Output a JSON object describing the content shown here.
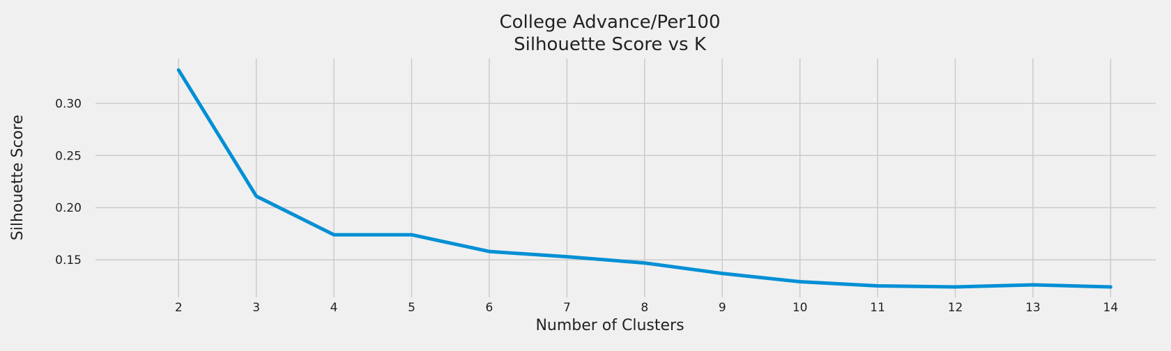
{
  "chart_data": {
    "type": "line",
    "title": "College Advance/Per100",
    "subtitle": "Silhouette Score vs K",
    "xlabel": "Number of Clusters",
    "ylabel": "Silhouette Score",
    "x": [
      2,
      3,
      4,
      5,
      6,
      7,
      8,
      9,
      10,
      11,
      12,
      13,
      14
    ],
    "series": [
      {
        "values": [
          0.332,
          0.211,
          0.174,
          0.174,
          0.158,
          0.153,
          0.147,
          0.137,
          0.129,
          0.125,
          0.124,
          0.126,
          0.124
        ]
      }
    ],
    "xticks": [
      2,
      3,
      4,
      5,
      6,
      7,
      8,
      9,
      10,
      11,
      12,
      13,
      14
    ],
    "yticks": [
      0.15,
      0.2,
      0.25,
      0.3
    ],
    "ytick_labels": [
      "0.15",
      "0.20",
      "0.25",
      "0.30"
    ],
    "xlim": [
      0.93,
      14.58
    ],
    "ylim": [
      0.114,
      0.343
    ],
    "grid": true,
    "legend": "none",
    "colors": {
      "background": "#f0f0f0",
      "grid": "#cbcbcb",
      "line": "#008fd5",
      "text": "#222222"
    }
  }
}
